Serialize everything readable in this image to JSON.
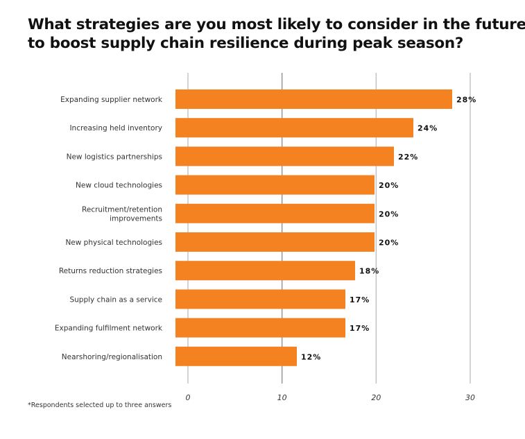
{
  "chart_data": {
    "type": "bar",
    "orientation": "horizontal",
    "title": "What strategies are you most likely to consider in the future to boost supply chain resilience during peak season?",
    "title_lines": [
      "What strategies are you most likely to consider in the future",
      "to boost supply chain resilience during peak season?"
    ],
    "categories": [
      [
        "Expanding supplier network"
      ],
      [
        "Increasing held inventory"
      ],
      [
        "New logistics partnerships"
      ],
      [
        "New cloud technologies"
      ],
      [
        "Recruitment/retention",
        "improvements"
      ],
      [
        "New physical technologies"
      ],
      [
        "Returns reduction strategies"
      ],
      [
        "Supply chain as a service"
      ],
      [
        "Expanding fulfilment network"
      ],
      [
        "Nearshoring/regionalisation"
      ]
    ],
    "values": [
      28,
      24,
      22,
      20,
      20,
      20,
      18,
      17,
      17,
      12
    ],
    "value_labels": [
      "28%",
      "24%",
      "22%",
      "20%",
      "20%",
      "20%",
      "18%",
      "17%",
      "17%",
      "12%"
    ],
    "unit": "%",
    "xlim": [
      0,
      30
    ],
    "xticks": [
      0,
      10,
      20,
      30
    ],
    "xtick_labels": [
      "0",
      "10",
      "20",
      "30"
    ],
    "grid": true,
    "bar_color": "#F58220",
    "grid_color": "#BDBDBD",
    "xlabel": "",
    "ylabel": "",
    "footnote": "*Respondents selected up to three answers"
  }
}
